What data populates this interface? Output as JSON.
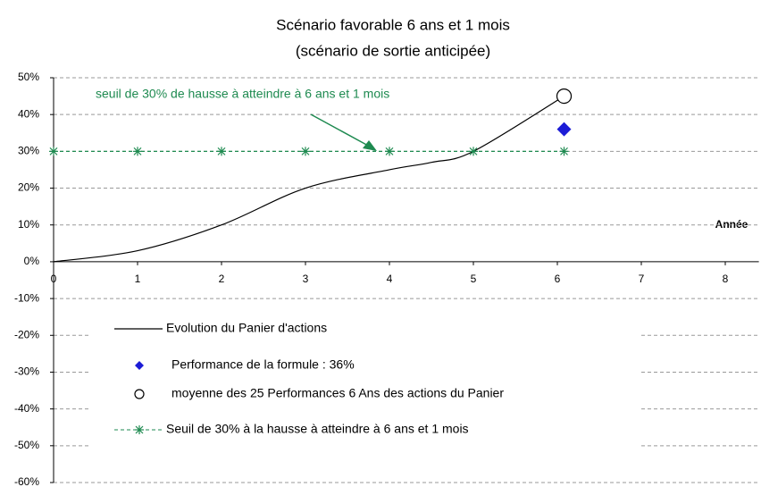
{
  "chart_data": {
    "type": "line",
    "title": "Scénario favorable 6 ans et 1 mois",
    "subtitle": "(scénario de sortie anticipée)",
    "x_label": "Année",
    "annotation": "seuil de 30% de hausse à atteindre à 6 ans et 1 mois",
    "xlim": [
      0,
      8.4
    ],
    "xticks": [
      0,
      1,
      2,
      3,
      4,
      5,
      6,
      7,
      8
    ],
    "ylim": [
      -60,
      50
    ],
    "yticks": [
      {
        "value": -60,
        "label": "-60%"
      },
      {
        "value": -50,
        "label": "-50%"
      },
      {
        "value": -40,
        "label": "-40%"
      },
      {
        "value": -30,
        "label": "-30%"
      },
      {
        "value": -20,
        "label": "-20%"
      },
      {
        "value": -10,
        "label": "-10%"
      },
      {
        "value": 0,
        "label": "0%"
      },
      {
        "value": 10,
        "label": "10%"
      },
      {
        "value": 20,
        "label": "20%"
      },
      {
        "value": 30,
        "label": "30%"
      },
      {
        "value": 40,
        "label": "40%"
      },
      {
        "value": 50,
        "label": "50%"
      }
    ],
    "grid": true,
    "series": [
      {
        "name": "Evolution du Panier d'actions",
        "color": "#000000",
        "marker": "none",
        "style": "solid",
        "x": [
          0,
          1,
          2,
          3,
          4,
          4.5,
          5,
          6.08
        ],
        "values": [
          0,
          3,
          10,
          20,
          25,
          27,
          30,
          45
        ]
      },
      {
        "name": "Performance de la formule : 36%",
        "color": "#1c1cd6",
        "marker": "diamond",
        "style": "none",
        "x": [
          6.08
        ],
        "values": [
          36
        ]
      },
      {
        "name": "moyenne des 25 Performances 6 Ans des actions du Panier",
        "color": "#000000",
        "marker": "circle",
        "style": "none",
        "x": [
          6.08
        ],
        "values": [
          45
        ]
      },
      {
        "name": "Seuil de 30% à la hausse à atteindre à 6 ans et 1 mois",
        "color": "#1e8a50",
        "marker": "asterisk",
        "style": "dashed",
        "x": [
          0,
          1,
          2,
          3,
          4,
          5,
          6.08
        ],
        "values": [
          30,
          30,
          30,
          30,
          30,
          30,
          30
        ]
      }
    ]
  }
}
